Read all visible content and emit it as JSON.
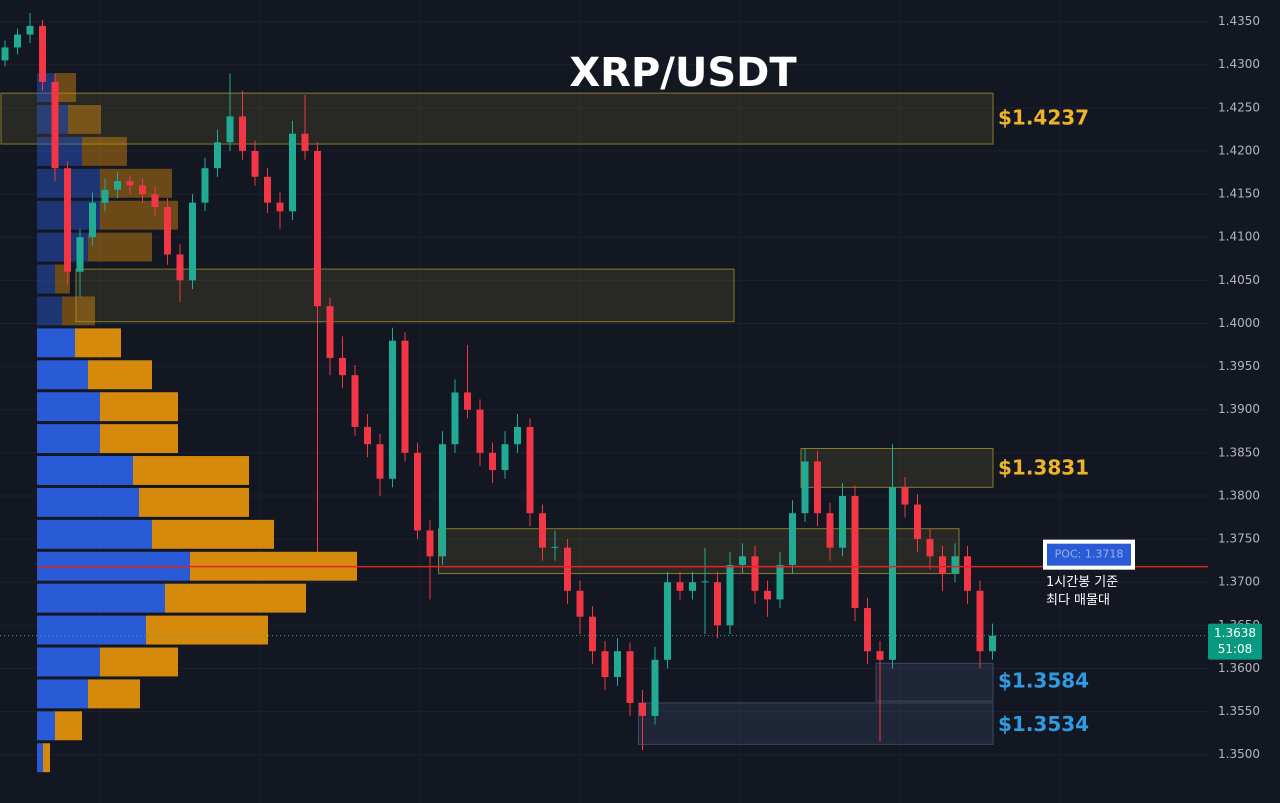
{
  "chart_data": {
    "type": "candlestick",
    "title": "XRP/USDT",
    "up_color": "#22ab94",
    "down_color": "#f23645",
    "ohlc": [
      [
        1.4305,
        1.4328,
        1.4298,
        1.432
      ],
      [
        1.432,
        1.4342,
        1.4312,
        1.4335
      ],
      [
        1.4335,
        1.436,
        1.4325,
        1.4345
      ],
      [
        1.4345,
        1.4352,
        1.427,
        1.428
      ],
      [
        1.428,
        1.429,
        1.4165,
        1.418
      ],
      [
        1.418,
        1.4188,
        1.4045,
        1.406
      ],
      [
        1.406,
        1.411,
        1.403,
        1.41
      ],
      [
        1.41,
        1.4152,
        1.409,
        1.414
      ],
      [
        1.414,
        1.4168,
        1.413,
        1.4155
      ],
      [
        1.4155,
        1.4175,
        1.4145,
        1.4165
      ],
      [
        1.4165,
        1.4172,
        1.415,
        1.416
      ],
      [
        1.416,
        1.4168,
        1.414,
        1.415
      ],
      [
        1.415,
        1.416,
        1.4125,
        1.4135
      ],
      [
        1.4135,
        1.4145,
        1.4068,
        1.408
      ],
      [
        1.408,
        1.4092,
        1.4025,
        1.405
      ],
      [
        1.405,
        1.415,
        1.404,
        1.414
      ],
      [
        1.414,
        1.4192,
        1.413,
        1.418
      ],
      [
        1.418,
        1.4225,
        1.417,
        1.421
      ],
      [
        1.421,
        1.429,
        1.42,
        1.424
      ],
      [
        1.424,
        1.427,
        1.419,
        1.42
      ],
      [
        1.42,
        1.4212,
        1.416,
        1.417
      ],
      [
        1.417,
        1.418,
        1.4128,
        1.414
      ],
      [
        1.414,
        1.4152,
        1.411,
        1.413
      ],
      [
        1.413,
        1.4235,
        1.412,
        1.422
      ],
      [
        1.422,
        1.4265,
        1.419,
        1.42
      ],
      [
        1.42,
        1.421,
        1.3735,
        1.402
      ],
      [
        1.402,
        1.403,
        1.394,
        1.396
      ],
      [
        1.396,
        1.3985,
        1.3925,
        1.394
      ],
      [
        1.394,
        1.3952,
        1.387,
        1.388
      ],
      [
        1.388,
        1.3895,
        1.3845,
        1.386
      ],
      [
        1.386,
        1.3872,
        1.38,
        1.382
      ],
      [
        1.382,
        1.3995,
        1.381,
        1.398
      ],
      [
        1.398,
        1.399,
        1.384,
        1.385
      ],
      [
        1.385,
        1.3862,
        1.375,
        1.376
      ],
      [
        1.376,
        1.3772,
        1.368,
        1.373
      ],
      [
        1.373,
        1.3875,
        1.372,
        1.386
      ],
      [
        1.386,
        1.3935,
        1.385,
        1.392
      ],
      [
        1.392,
        1.3975,
        1.389,
        1.39
      ],
      [
        1.39,
        1.3912,
        1.3835,
        1.385
      ],
      [
        1.385,
        1.3862,
        1.3815,
        1.383
      ],
      [
        1.383,
        1.3875,
        1.382,
        1.386
      ],
      [
        1.386,
        1.3895,
        1.385,
        1.388
      ],
      [
        1.388,
        1.389,
        1.3765,
        1.378
      ],
      [
        1.378,
        1.379,
        1.3725,
        1.374
      ],
      [
        1.374,
        1.376,
        1.3725,
        1.3741
      ],
      [
        1.374,
        1.375,
        1.3675,
        1.369
      ],
      [
        1.369,
        1.3702,
        1.364,
        1.366
      ],
      [
        1.366,
        1.3672,
        1.3605,
        1.362
      ],
      [
        1.362,
        1.3632,
        1.3575,
        1.359
      ],
      [
        1.359,
        1.3635,
        1.358,
        1.362
      ],
      [
        1.362,
        1.363,
        1.3545,
        1.356
      ],
      [
        1.356,
        1.3575,
        1.3505,
        1.3545
      ],
      [
        1.3545,
        1.3625,
        1.3535,
        1.361
      ],
      [
        1.361,
        1.3712,
        1.36,
        1.37
      ],
      [
        1.37,
        1.3712,
        1.368,
        1.369
      ],
      [
        1.369,
        1.3712,
        1.368,
        1.37
      ],
      [
        1.37,
        1.374,
        1.364,
        1.3701
      ],
      [
        1.37,
        1.3712,
        1.3635,
        1.365
      ],
      [
        1.365,
        1.3735,
        1.364,
        1.372
      ],
      [
        1.372,
        1.3745,
        1.371,
        1.373
      ],
      [
        1.373,
        1.3742,
        1.3675,
        1.369
      ],
      [
        1.369,
        1.3702,
        1.366,
        1.368
      ],
      [
        1.368,
        1.3735,
        1.367,
        1.372
      ],
      [
        1.372,
        1.3795,
        1.371,
        1.378
      ],
      [
        1.378,
        1.3855,
        1.377,
        1.384
      ],
      [
        1.384,
        1.3852,
        1.3765,
        1.378
      ],
      [
        1.378,
        1.3792,
        1.3725,
        1.374
      ],
      [
        1.374,
        1.3815,
        1.373,
        1.38
      ],
      [
        1.38,
        1.3812,
        1.3655,
        1.367
      ],
      [
        1.367,
        1.3682,
        1.3605,
        1.362
      ],
      [
        1.362,
        1.3632,
        1.3515,
        1.361
      ],
      [
        1.361,
        1.386,
        1.36,
        1.381
      ],
      [
        1.381,
        1.3822,
        1.3775,
        1.379
      ],
      [
        1.379,
        1.3802,
        1.3735,
        1.375
      ],
      [
        1.375,
        1.3762,
        1.3715,
        1.373
      ],
      [
        1.373,
        1.3742,
        1.369,
        1.371
      ],
      [
        1.371,
        1.3745,
        1.37,
        1.373
      ],
      [
        1.373,
        1.3742,
        1.3675,
        1.369
      ],
      [
        1.369,
        1.3702,
        1.36,
        1.362
      ],
      [
        1.362,
        1.3652,
        1.361,
        1.3638
      ]
    ],
    "ylim": [
      1.3444,
      1.4375
    ],
    "yticks": [
      {
        "value": 1.35,
        "label": "1.3500"
      },
      {
        "value": 1.355,
        "label": "1.3550"
      },
      {
        "value": 1.36,
        "label": "1.3600"
      },
      {
        "value": 1.365,
        "label": "1.3650"
      },
      {
        "value": 1.37,
        "label": "1.3700"
      },
      {
        "value": 1.375,
        "label": "1.3750"
      },
      {
        "value": 1.38,
        "label": "1.3800"
      },
      {
        "value": 1.385,
        "label": "1.3850"
      },
      {
        "value": 1.39,
        "label": "1.3900"
      },
      {
        "value": 1.395,
        "label": "1.3950"
      },
      {
        "value": 1.4,
        "label": "1.4000"
      },
      {
        "value": 1.405,
        "label": "1.4050"
      },
      {
        "value": 1.41,
        "label": "1.4100"
      },
      {
        "value": 1.415,
        "label": "1.4150"
      },
      {
        "value": 1.42,
        "label": "1.4200"
      },
      {
        "value": 1.425,
        "label": "1.4250"
      },
      {
        "value": 1.43,
        "label": "1.4300"
      },
      {
        "value": 1.435,
        "label": "1.4350"
      }
    ],
    "zones": [
      {
        "top": 1.4267,
        "bottom": 1.4208,
        "from": 0,
        "value": 1.4237,
        "label": "$1.4237",
        "color": "#f0b429"
      },
      {
        "top": 1.4063,
        "bottom": 1.4002,
        "from": 6,
        "to": 58,
        "color": "#b59b2e"
      },
      {
        "top": 1.3762,
        "bottom": 1.371,
        "from": 35,
        "to": 76,
        "color": "#b59b2e"
      },
      {
        "top": 1.3855,
        "bottom": 1.381,
        "from": 64,
        "value": 1.3831,
        "label": "$1.3831",
        "color": "#f0b429"
      },
      {
        "top": 1.3606,
        "bottom": 1.3562,
        "from": 70,
        "value": 1.3584,
        "label": "$1.3584",
        "color": "#2f9be0"
      },
      {
        "top": 1.356,
        "bottom": 1.3512,
        "from": 51,
        "value": 1.3534,
        "label": "$1.3534",
        "color": "#2f9be0"
      }
    ],
    "profile": {
      "bins": [
        1.3478,
        1.3515,
        1.3552,
        1.3589,
        1.3626,
        1.3663,
        1.37,
        1.3737,
        1.3774,
        1.3811,
        1.3848,
        1.3885,
        1.3922,
        1.3959,
        1.3996,
        1.4033,
        1.407,
        1.4107,
        1.4144,
        1.4181,
        1.4218,
        1.4255,
        1.4292
      ],
      "buy": [
        6,
        18,
        51,
        63,
        109,
        128,
        153,
        115,
        102,
        96,
        63,
        63,
        51,
        38,
        25,
        18,
        51,
        63,
        63,
        45,
        31,
        18
      ],
      "sell": [
        7,
        27,
        52,
        78,
        122,
        141,
        167,
        122,
        110,
        116,
        78,
        78,
        64,
        46,
        33,
        15,
        64,
        78,
        72,
        45,
        33,
        21
      ],
      "buy_color": "#2a5bd7",
      "sell_color": "#d68a0c"
    },
    "poc": {
      "value": 1.3718,
      "label": "POC: 1.3718",
      "color": "#e02424"
    },
    "poc_note": [
      "1시간봉 기준",
      "최다 매물대"
    ],
    "last_price": 1.3638,
    "countdown": "51:08"
  }
}
